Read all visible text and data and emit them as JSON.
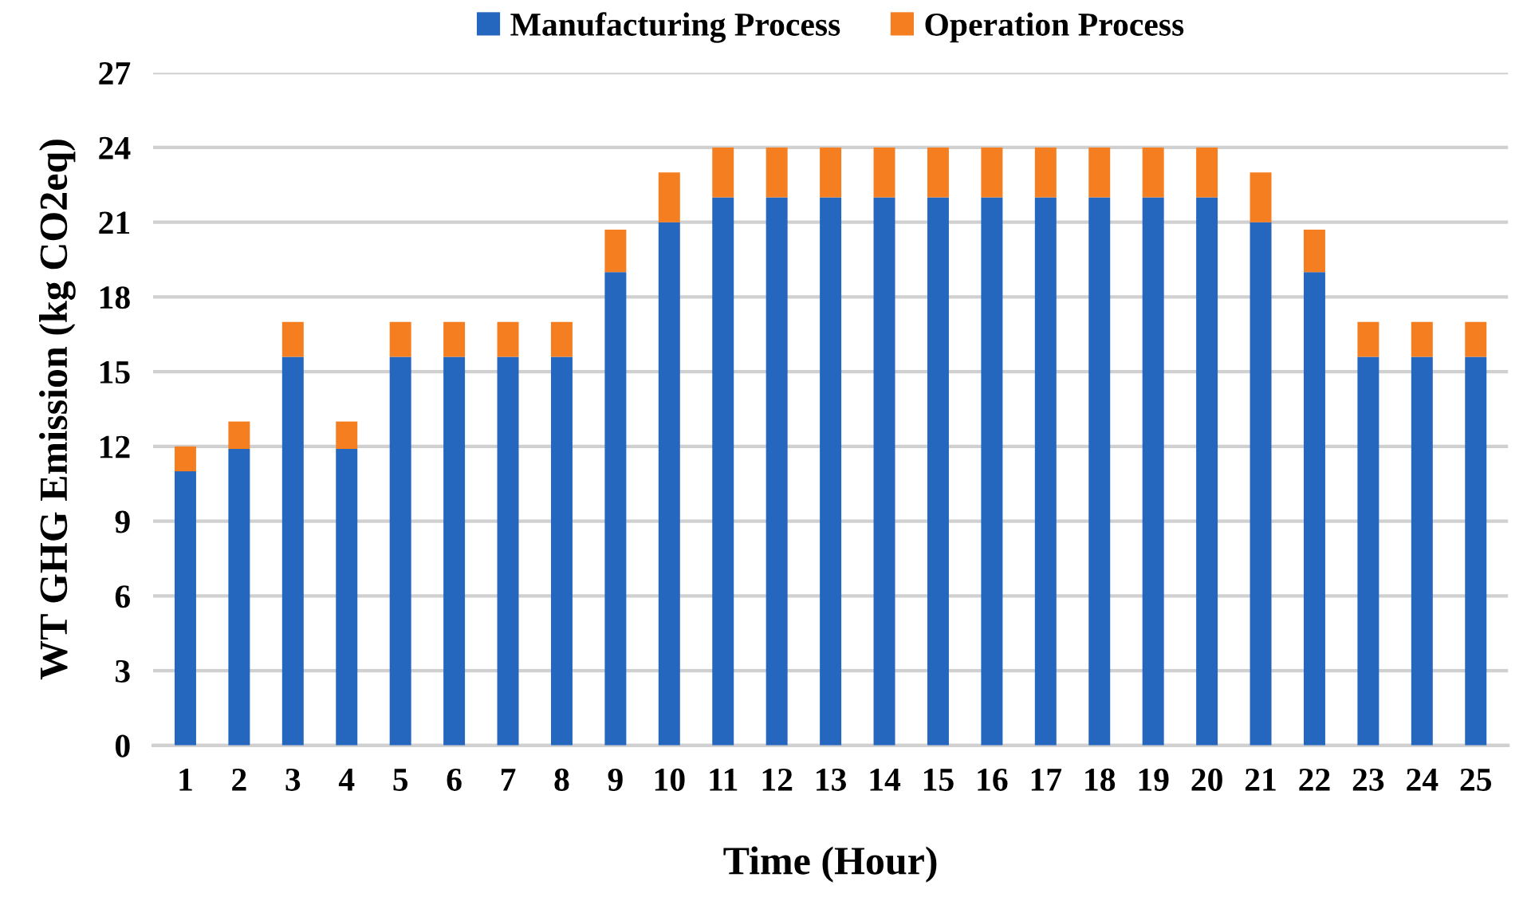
{
  "chart_data": {
    "type": "bar",
    "stacked": true,
    "xlabel": "Time (Hour)",
    "ylabel": "WT GHG Emission (kg CO2eq)",
    "categories": [
      "1",
      "2",
      "3",
      "4",
      "5",
      "6",
      "7",
      "8",
      "9",
      "10",
      "11",
      "12",
      "13",
      "14",
      "15",
      "16",
      "17",
      "18",
      "19",
      "20",
      "21",
      "22",
      "23",
      "24",
      "25"
    ],
    "series": [
      {
        "name": "Manufacturing Process",
        "color": "#2566be",
        "values": [
          11,
          11.9,
          15.6,
          11.9,
          15.6,
          15.6,
          15.6,
          15.6,
          19,
          21,
          22,
          22,
          22,
          22,
          22,
          22,
          22,
          22,
          22,
          22,
          21,
          19,
          15.6,
          15.6,
          15.6
        ]
      },
      {
        "name": "Operation Process",
        "color": "#f47e20",
        "values": [
          1,
          1.1,
          1.4,
          1.1,
          1.4,
          1.4,
          1.4,
          1.4,
          1.7,
          2,
          2,
          2,
          2,
          2,
          2,
          2,
          2,
          2,
          2,
          2,
          2,
          1.7,
          1.4,
          1.4,
          1.4
        ]
      }
    ],
    "ylim": [
      0,
      27
    ],
    "yticks": [
      0,
      3,
      6,
      9,
      12,
      15,
      18,
      21,
      24,
      27
    ],
    "grid": "y",
    "legend": "top"
  }
}
